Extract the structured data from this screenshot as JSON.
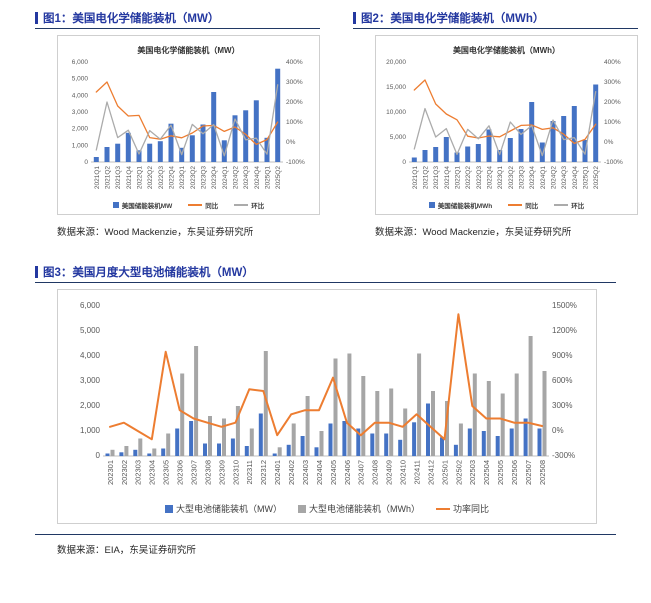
{
  "colors": {
    "accent_blue": "#2438a0",
    "rule_navy": "#203864",
    "bar_blue": "#4472C4",
    "bar_gray": "#A6A6A6",
    "line_orange": "#ED7D31",
    "line_gray": "#ABABAB",
    "box_border": "#cfcfcf"
  },
  "figure1": {
    "heading": "图1：美国电化学储能装机（MW）",
    "source": "数据来源：Wood Mackenzie，东吴证券研究所"
  },
  "figure2": {
    "heading": "图2：美国电化学储能装机（MWh）",
    "source": "数据来源：Wood Mackenzie，东吴证券研究所"
  },
  "figure3": {
    "heading": "图3：美国月度大型电池储能装机（MW）",
    "source": "数据来源：EIA，东吴证券研究所"
  },
  "chart_data": [
    {
      "id": "fig1",
      "type": "bar",
      "title": "美国电化学储能装机（MW）",
      "categories": [
        "2021Q1",
        "2021Q2",
        "2021Q3",
        "2021Q4",
        "2022Q1",
        "2022Q2",
        "2022Q3",
        "2022Q4",
        "2023Q1",
        "2023Q2",
        "2023Q3",
        "2023Q4",
        "2024Q1",
        "2024Q2",
        "2024Q3",
        "2024Q4",
        "2025Q1",
        "2025Q2"
      ],
      "left_axis": {
        "min": 0,
        "max": 6000,
        "ticks": [
          "0",
          "1,000",
          "2,000",
          "3,000",
          "4,000",
          "5,000",
          "6,000"
        ]
      },
      "right_axis": {
        "min": -100,
        "max": 400,
        "ticks": [
          "-100%",
          "0%",
          "100%",
          "200%",
          "300%",
          "400%"
        ]
      },
      "legend_position": "bottom",
      "grid": false,
      "series": [
        {
          "name": "美国储能装机MW",
          "type": "bar",
          "axis": "left",
          "color": "#4472C4",
          "values": [
            300,
            900,
            1100,
            1750,
            700,
            1100,
            1250,
            2300,
            850,
            1600,
            2250,
            4200,
            1300,
            2800,
            3100,
            3700,
            1450,
            5600
          ]
        },
        {
          "name": "同比",
          "type": "line",
          "axis": "right",
          "color": "#ED7D31",
          "values": [
            250,
            300,
            180,
            130,
            133,
            22,
            14,
            31,
            21,
            45,
            80,
            83,
            53,
            75,
            38,
            -12,
            12,
            100
          ]
        },
        {
          "name": "环比",
          "type": "line",
          "axis": "right",
          "color": "#ABABAB",
          "values": [
            -40,
            200,
            22,
            59,
            -60,
            57,
            14,
            84,
            -63,
            88,
            41,
            87,
            -69,
            115,
            11,
            19,
            -61,
            286
          ]
        }
      ]
    },
    {
      "id": "fig2",
      "type": "bar",
      "title": "美国电化学储能装机（MWh）",
      "categories": [
        "2021Q1",
        "2021Q2",
        "2021Q3",
        "2021Q4",
        "2022Q1",
        "2022Q2",
        "2022Q3",
        "2022Q4",
        "2023Q1",
        "2023Q2",
        "2023Q3",
        "2023Q4",
        "2024Q1",
        "2024Q2",
        "2024Q3",
        "2024Q4",
        "2025Q1",
        "2025Q2"
      ],
      "left_axis": {
        "min": 0,
        "max": 20000,
        "ticks": [
          "0",
          "5,000",
          "10,000",
          "15,000",
          "20,000"
        ]
      },
      "right_axis": {
        "min": -100,
        "max": 400,
        "ticks": [
          "-100%",
          "0%",
          "100%",
          "200%",
          "300%",
          "400%"
        ]
      },
      "legend_position": "bottom",
      "grid": false,
      "series": [
        {
          "name": "美国储能装机MWh",
          "type": "bar",
          "axis": "left",
          "color": "#4472C4",
          "values": [
            900,
            2400,
            3000,
            5000,
            1900,
            3100,
            3600,
            6500,
            2400,
            4800,
            6600,
            12000,
            3900,
            8200,
            9200,
            11200,
            4400,
            15500
          ]
        },
        {
          "name": "同比",
          "type": "line",
          "axis": "right",
          "color": "#ED7D31",
          "values": [
            260,
            310,
            190,
            140,
            111,
            29,
            20,
            30,
            26,
            55,
            83,
            85,
            63,
            71,
            39,
            -7,
            13,
            89
          ]
        },
        {
          "name": "环比",
          "type": "line",
          "axis": "right",
          "color": "#ABABAB",
          "values": [
            -35,
            167,
            25,
            67,
            -62,
            63,
            16,
            81,
            -63,
            100,
            38,
            82,
            -68,
            110,
            12,
            22,
            -61,
            252
          ]
        }
      ]
    },
    {
      "id": "fig3",
      "type": "bar",
      "title": "",
      "categories": [
        "202301",
        "202302",
        "202303",
        "202304",
        "202305",
        "202306",
        "202307",
        "202308",
        "202309",
        "202310",
        "202311",
        "202312",
        "202401",
        "202402",
        "202403",
        "202404",
        "202405",
        "202406",
        "202407",
        "202408",
        "202409",
        "202410",
        "202411",
        "202412",
        "202501",
        "202502",
        "202503",
        "202504",
        "202505",
        "202506",
        "202507",
        "202508"
      ],
      "left_axis": {
        "min": 0,
        "max": 6000,
        "ticks": [
          "0",
          "1,000",
          "2,000",
          "3,000",
          "4,000",
          "5,000",
          "6,000"
        ]
      },
      "right_axis": {
        "min": -300,
        "max": 1500,
        "ticks": [
          "-300%",
          "0%",
          "300%",
          "600%",
          "900%",
          "1200%",
          "1500%"
        ]
      },
      "legend_position": "bottom",
      "grid": false,
      "series": [
        {
          "name": "大型电池储能装机（MW）",
          "type": "bar",
          "axis": "left",
          "color": "#4472C4",
          "values": [
            100,
            150,
            250,
            100,
            300,
            1100,
            1400,
            500,
            500,
            700,
            400,
            1700,
            100,
            450,
            800,
            350,
            1300,
            1400,
            1100,
            900,
            900,
            650,
            1350,
            2100,
            750,
            450,
            1100,
            1000,
            800,
            1100,
            1500,
            1100
          ]
        },
        {
          "name": "大型电池储能装机（MWh）",
          "type": "bar",
          "axis": "left",
          "color": "#A6A6A6",
          "values": [
            250,
            400,
            700,
            300,
            900,
            3300,
            4400,
            1600,
            1500,
            2000,
            1100,
            4200,
            350,
            1300,
            2400,
            1000,
            3900,
            4100,
            3200,
            2600,
            2700,
            1900,
            4100,
            2600,
            2200,
            1300,
            3300,
            3000,
            2500,
            3300,
            4800,
            3400
          ]
        },
        {
          "name": "功率同比",
          "type": "line",
          "axis": "right",
          "color": "#ED7D31",
          "values": [
            50,
            100,
            0,
            -100,
            950,
            250,
            150,
            100,
            50,
            100,
            500,
            480,
            -50,
            200,
            250,
            250,
            640,
            100,
            -50,
            100,
            100,
            50,
            200,
            50,
            -100,
            1400,
            300,
            150,
            150,
            100,
            100,
            60
          ]
        }
      ]
    }
  ]
}
